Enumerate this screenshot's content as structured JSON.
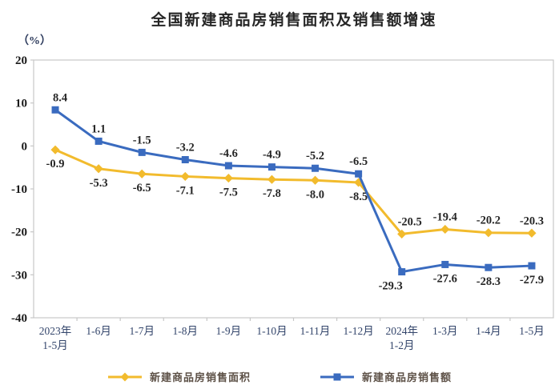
{
  "chart_data": {
    "type": "line",
    "title": "全国新建商品房销售面积及销售额增速",
    "unit_label": "（%）",
    "categories": [
      [
        "2023年",
        "1-5月"
      ],
      [
        "1-6月"
      ],
      [
        "1-7月"
      ],
      [
        "1-8月"
      ],
      [
        "1-9月"
      ],
      [
        "1-10月"
      ],
      [
        "1-11月"
      ],
      [
        "1-12月"
      ],
      [
        "2024年",
        "1-2月"
      ],
      [
        "1-3月"
      ],
      [
        "1-4月"
      ],
      [
        "1-5月"
      ]
    ],
    "ylim": [
      -40,
      20
    ],
    "ytick_step": 10,
    "grid": false,
    "legend_position": "bottom",
    "colors": {
      "background": "#ffffff",
      "axis": "#c7c7c7",
      "y_labels": "#1a1a1a",
      "x_labels": "#33456b",
      "data_labels": "#262626",
      "title": "#262626",
      "legend_text": "#5d5147"
    },
    "series": [
      {
        "name": "新建商品房销售面积",
        "color": "#F2BB2D",
        "marker": "diamond",
        "values": [
          -0.9,
          -5.3,
          -6.5,
          -7.1,
          -7.5,
          -7.8,
          -8.0,
          -8.5,
          -20.5,
          -19.4,
          -20.2,
          -20.3
        ],
        "labels": [
          "-0.9",
          "-5.3",
          "-6.5",
          "-7.1",
          "-7.5",
          "-7.8",
          "-8.0",
          "-8.5",
          "-20.5",
          "-19.4",
          "-20.2",
          "-20.3"
        ],
        "label_side": [
          "below",
          "below",
          "below",
          "below",
          "below",
          "below",
          "below",
          "below",
          "above",
          "above",
          "above",
          "above"
        ],
        "label_dx": [
          0,
          0,
          0,
          0,
          0,
          0,
          0,
          0,
          10,
          0,
          0,
          0
        ]
      },
      {
        "name": "新建商品房销售额",
        "color": "#3A6BBF",
        "marker": "square",
        "values": [
          8.4,
          1.1,
          -1.5,
          -3.2,
          -4.6,
          -4.9,
          -5.2,
          -6.5,
          -29.3,
          -27.6,
          -28.3,
          -27.9
        ],
        "labels": [
          "8.4",
          "1.1",
          "-1.5",
          "-3.2",
          "-4.6",
          "-4.9",
          "-5.2",
          "-6.5",
          "-29.3",
          "-27.6",
          "-28.3",
          "-27.9"
        ],
        "label_side": [
          "above",
          "above",
          "above",
          "above",
          "above",
          "above",
          "above",
          "above",
          "below",
          "below",
          "below",
          "below"
        ],
        "label_dx": [
          6,
          0,
          0,
          0,
          0,
          0,
          0,
          0,
          -14,
          0,
          0,
          0
        ]
      }
    ]
  }
}
